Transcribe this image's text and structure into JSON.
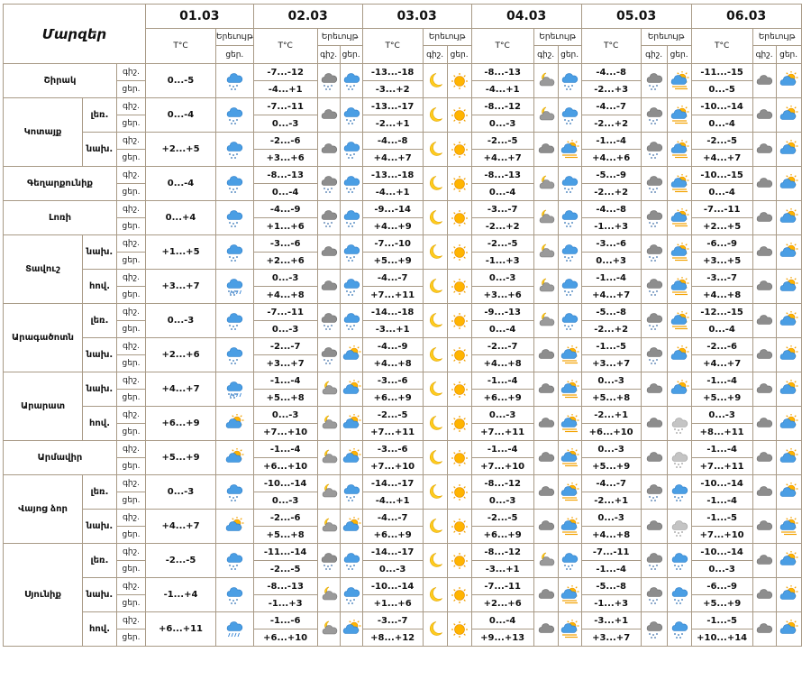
{
  "header": {
    "regions_title": "Մարզեր",
    "temp_label": "T°C",
    "weather_label": "Երեւույթ",
    "night_label": "գիշ.",
    "day_label": "ցեր."
  },
  "dates": [
    "01.03",
    "02.03",
    "03.03",
    "04.03",
    "05.03",
    "06.03"
  ],
  "rows": [
    {
      "region": "Շիրակ",
      "zone": "",
      "tod": "գիշ.",
      "t1": "",
      "w1": "",
      "d": [
        [
          "-7...-12",
          "cloud-snow",
          "snow-cloud"
        ],
        [
          "-13...-18",
          "moon",
          "sun"
        ],
        [
          "-8...-13",
          "moon-cloud",
          "snow-cloud"
        ],
        [
          "-4...-8",
          "cloud-snow",
          "sun-cloud-wind"
        ],
        [
          "-11...-15",
          "cloud",
          "sun-cloud"
        ]
      ]
    },
    {
      "region": "",
      "zone": "",
      "tod": "ցեր.",
      "t1": "0...-5",
      "w1": "snow-cloud",
      "d": [
        [
          "-4...+1"
        ],
        [
          "-3...+2"
        ],
        [
          "-4...+1"
        ],
        [
          "-2...+3"
        ],
        [
          "0...-5"
        ]
      ]
    },
    {
      "region": "Կոտայք",
      "zone": "լեռ.",
      "tod": "գիշ.",
      "t1": "",
      "w1": "",
      "d": [
        [
          "-7...-11",
          "cloud",
          "snow-cloud"
        ],
        [
          "-13...-17",
          "moon",
          "sun"
        ],
        [
          "-8...-12",
          "moon-cloud",
          "snow-cloud"
        ],
        [
          "-4...-7",
          "cloud-snow",
          "sun-cloud-wind"
        ],
        [
          "-10...-14",
          "cloud",
          "sun-cloud"
        ]
      ]
    },
    {
      "region": "",
      "zone": "",
      "tod": "ցեր.",
      "t1": "0...-4",
      "w1": "snow-cloud",
      "d": [
        [
          "0...-3"
        ],
        [
          "-2...+1"
        ],
        [
          "0...-3"
        ],
        [
          "-2...+2"
        ],
        [
          "0...-4"
        ]
      ]
    },
    {
      "region": "",
      "zone": "նախ.",
      "tod": "գիշ.",
      "t1": "",
      "w1": "",
      "d": [
        [
          "-2...-6",
          "cloud",
          "snow-cloud"
        ],
        [
          "-4...-8",
          "moon",
          "sun"
        ],
        [
          "-2...-5",
          "cloud",
          "sun-cloud-wind"
        ],
        [
          "-1...-4",
          "cloud-snow",
          "sun-cloud-wind"
        ],
        [
          "-2...-5",
          "cloud",
          "sun-cloud"
        ]
      ]
    },
    {
      "region": "",
      "zone": "",
      "tod": "ցեր.",
      "t1": "+2...+5",
      "w1": "snow-cloud",
      "d": [
        [
          "+3...+6"
        ],
        [
          "+4...+7"
        ],
        [
          "+4...+7"
        ],
        [
          "+4...+6"
        ],
        [
          "+4...+7"
        ]
      ]
    },
    {
      "region": "Գեղարքունիք",
      "zone": "",
      "tod": "գիշ.",
      "t1": "",
      "w1": "",
      "d": [
        [
          "-8...-13",
          "cloud-snow",
          "snow-cloud"
        ],
        [
          "-13...-18",
          "moon",
          "sun"
        ],
        [
          "-8...-13",
          "moon-cloud",
          "snow-cloud"
        ],
        [
          "-5...-9",
          "cloud-snow",
          "sun-cloud-wind"
        ],
        [
          "-10...-15",
          "cloud",
          "sun-cloud"
        ]
      ]
    },
    {
      "region": "",
      "zone": "",
      "tod": "ցեր.",
      "t1": "0...-4",
      "w1": "snow-cloud",
      "d": [
        [
          "0...-4"
        ],
        [
          "-4...+1"
        ],
        [
          "0...-4"
        ],
        [
          "-2...+2"
        ],
        [
          "0...-4"
        ]
      ]
    },
    {
      "region": "Լոռի",
      "zone": "",
      "tod": "գիշ.",
      "t1": "",
      "w1": "",
      "d": [
        [
          "-4...-9",
          "cloud-snow",
          "snow-cloud"
        ],
        [
          "-9...-14",
          "moon",
          "sun"
        ],
        [
          "-3...-7",
          "moon-cloud",
          "snow-cloud"
        ],
        [
          "-4...-8",
          "cloud-snow",
          "sun-cloud-wind"
        ],
        [
          "-7...-11",
          "cloud",
          "sun-cloud"
        ]
      ]
    },
    {
      "region": "",
      "zone": "",
      "tod": "ցեր.",
      "t1": "0...+4",
      "w1": "snow-cloud",
      "d": [
        [
          "+1...+6"
        ],
        [
          "+4...+9"
        ],
        [
          "-2...+2"
        ],
        [
          "-1...+3"
        ],
        [
          "+2...+5"
        ]
      ]
    },
    {
      "region": "Տավուշ",
      "zone": "նախ.",
      "tod": "գիշ.",
      "t1": "",
      "w1": "",
      "d": [
        [
          "-3...-6",
          "cloud",
          "snow-cloud"
        ],
        [
          "-7...-10",
          "moon",
          "sun"
        ],
        [
          "-2...-5",
          "moon-cloud",
          "snow-cloud"
        ],
        [
          "-3...-6",
          "cloud-snow",
          "sun-cloud-wind"
        ],
        [
          "-6...-9",
          "cloud",
          "sun-cloud"
        ]
      ]
    },
    {
      "region": "",
      "zone": "",
      "tod": "ցեր.",
      "t1": "+1...+5",
      "w1": "snow-cloud",
      "d": [
        [
          "+2...+6"
        ],
        [
          "+5...+9"
        ],
        [
          "-1...+3"
        ],
        [
          "0...+3"
        ],
        [
          "+3...+5"
        ]
      ]
    },
    {
      "region": "",
      "zone": "հով.",
      "tod": "գիշ.",
      "t1": "",
      "w1": "",
      "d": [
        [
          "0...-3",
          "cloud",
          "snow-cloud"
        ],
        [
          "-4...-7",
          "moon",
          "sun"
        ],
        [
          "0...-3",
          "moon-cloud",
          "snow-cloud"
        ],
        [
          "-1...-4",
          "cloud-snow",
          "sun-cloud-wind"
        ],
        [
          "-3...-7",
          "cloud",
          "sun-cloud"
        ]
      ]
    },
    {
      "region": "",
      "zone": "",
      "tod": "ցեր.",
      "t1": "+3...+7",
      "w1": "snow-rain-cloud",
      "d": [
        [
          "+4...+8"
        ],
        [
          "+7...+11"
        ],
        [
          "+3...+6"
        ],
        [
          "+4...+7"
        ],
        [
          "+4...+8"
        ]
      ]
    },
    {
      "region": "Արագածոտն",
      "zone": "լեռ.",
      "tod": "գիշ.",
      "t1": "",
      "w1": "",
      "d": [
        [
          "-7...-11",
          "cloud-snow",
          "snow-cloud"
        ],
        [
          "-14...-18",
          "moon",
          "sun"
        ],
        [
          "-9...-13",
          "moon-cloud",
          "snow-cloud"
        ],
        [
          "-5...-8",
          "cloud-snow",
          "sun-cloud-wind"
        ],
        [
          "-12...-15",
          "cloud",
          "sun-cloud"
        ]
      ]
    },
    {
      "region": "",
      "zone": "",
      "tod": "ցեր.",
      "t1": "0...-3",
      "w1": "snow-cloud",
      "d": [
        [
          "0...-3"
        ],
        [
          "-3...+1"
        ],
        [
          "0...-4"
        ],
        [
          "-2...+2"
        ],
        [
          "0...-4"
        ]
      ]
    },
    {
      "region": "",
      "zone": "նախ.",
      "tod": "գիշ.",
      "t1": "",
      "w1": "",
      "d": [
        [
          "-2...-7",
          "cloud-snow",
          "sun-cloud"
        ],
        [
          "-4...-9",
          "moon",
          "sun"
        ],
        [
          "-2...-7",
          "cloud",
          "sun-cloud-wind"
        ],
        [
          "-1...-5",
          "cloud-snow",
          "sun-cloud"
        ],
        [
          "-2...-6",
          "cloud",
          "sun-cloud"
        ]
      ]
    },
    {
      "region": "",
      "zone": "",
      "tod": "ցեր.",
      "t1": "+2...+6",
      "w1": "snow-cloud",
      "d": [
        [
          "+3...+7"
        ],
        [
          "+4...+8"
        ],
        [
          "+4...+8"
        ],
        [
          "+3...+7"
        ],
        [
          "+4...+7"
        ]
      ]
    },
    {
      "region": "Արարատ",
      "zone": "նախ.",
      "tod": "գիշ.",
      "t1": "",
      "w1": "",
      "d": [
        [
          "-1...-4",
          "moon-cloud",
          "sun-cloud"
        ],
        [
          "-3...-6",
          "moon",
          "sun"
        ],
        [
          "-1...-4",
          "cloud",
          "sun-cloud-wind"
        ],
        [
          "0...-3",
          "cloud",
          "sun-cloud"
        ],
        [
          "-1...-4",
          "cloud",
          "sun-cloud"
        ]
      ]
    },
    {
      "region": "",
      "zone": "",
      "tod": "ցեր.",
      "t1": "+4...+7",
      "w1": "snow-rain-cloud",
      "d": [
        [
          "+5...+8"
        ],
        [
          "+6...+9"
        ],
        [
          "+6...+9"
        ],
        [
          "+5...+8"
        ],
        [
          "+5...+9"
        ]
      ]
    },
    {
      "region": "",
      "zone": "հով.",
      "tod": "գիշ.",
      "t1": "",
      "w1": "",
      "d": [
        [
          "0...-3",
          "moon-cloud",
          "sun-cloud"
        ],
        [
          "-2...-5",
          "moon",
          "sun"
        ],
        [
          "0...-3",
          "cloud",
          "sun-cloud-wind"
        ],
        [
          "-2...+1",
          "cloud",
          "cloud-light"
        ],
        [
          "0...-3",
          "cloud",
          "sun-cloud"
        ]
      ]
    },
    {
      "region": "",
      "zone": "",
      "tod": "ցեր.",
      "t1": "+6...+9",
      "w1": "sun-cloud",
      "d": [
        [
          "+7...+10"
        ],
        [
          "+7...+11"
        ],
        [
          "+7...+11"
        ],
        [
          "+6...+10"
        ],
        [
          "+8...+11"
        ]
      ]
    },
    {
      "region": "Արմավիր",
      "zone": "",
      "tod": "գիշ.",
      "t1": "",
      "w1": "",
      "d": [
        [
          "-1...-4",
          "moon-cloud",
          "sun-cloud"
        ],
        [
          "-3...-6",
          "moon",
          "sun"
        ],
        [
          "-1...-4",
          "cloud",
          "sun-cloud-wind"
        ],
        [
          "0...-3",
          "cloud",
          "cloud-light"
        ],
        [
          "-1...-4",
          "cloud",
          "sun-cloud"
        ]
      ]
    },
    {
      "region": "",
      "zone": "",
      "tod": "ցեր.",
      "t1": "+5...+9",
      "w1": "sun-cloud",
      "d": [
        [
          "+6...+10"
        ],
        [
          "+7...+10"
        ],
        [
          "+7...+10"
        ],
        [
          "+5...+9"
        ],
        [
          "+7...+11"
        ]
      ]
    },
    {
      "region": "Վայոց ձոր",
      "zone": "լեռ.",
      "tod": "գիշ.",
      "t1": "",
      "w1": "",
      "d": [
        [
          "-10...-14",
          "moon-cloud",
          "snow-cloud"
        ],
        [
          "-14...-17",
          "moon",
          "sun"
        ],
        [
          "-8...-12",
          "cloud",
          "sun-cloud-wind"
        ],
        [
          "-4...-7",
          "cloud-snow",
          "snow-cloud"
        ],
        [
          "-10...-14",
          "cloud",
          "sun-cloud"
        ]
      ]
    },
    {
      "region": "",
      "zone": "",
      "tod": "ցեր.",
      "t1": "0...-3",
      "w1": "snow-cloud",
      "d": [
        [
          "0...-3"
        ],
        [
          "-4...+1"
        ],
        [
          "0...-3"
        ],
        [
          "-2...+1"
        ],
        [
          "-1...-4"
        ]
      ]
    },
    {
      "region": "",
      "zone": "նախ.",
      "tod": "գիշ.",
      "t1": "",
      "w1": "",
      "d": [
        [
          "-2...-6",
          "moon-cloud",
          "sun-cloud"
        ],
        [
          "-4...-7",
          "moon",
          "sun"
        ],
        [
          "-2...-5",
          "cloud",
          "sun-cloud-wind"
        ],
        [
          "0...-3",
          "cloud",
          "cloud-light"
        ],
        [
          "-1...-5",
          "cloud",
          "sun-cloud-wind"
        ]
      ]
    },
    {
      "region": "",
      "zone": "",
      "tod": "ցեր.",
      "t1": "+4...+7",
      "w1": "sun-cloud",
      "d": [
        [
          "+5...+8"
        ],
        [
          "+6...+9"
        ],
        [
          "+6...+9"
        ],
        [
          "+4...+8"
        ],
        [
          "+7...+10"
        ]
      ]
    },
    {
      "region": "Սյունիք",
      "zone": "լեռ.",
      "tod": "գիշ.",
      "t1": "",
      "w1": "",
      "d": [
        [
          "-11...-14",
          "cloud-snow",
          "snow-cloud"
        ],
        [
          "-14...-17",
          "moon",
          "sun"
        ],
        [
          "-8...-12",
          "moon-cloud",
          "snow-cloud"
        ],
        [
          "-7...-11",
          "cloud-snow",
          "snow-cloud"
        ],
        [
          "-10...-14",
          "cloud",
          "sun-cloud"
        ]
      ]
    },
    {
      "region": "",
      "zone": "",
      "tod": "ցեր.",
      "t1": "-2...-5",
      "w1": "snow-cloud",
      "d": [
        [
          "-2...-5"
        ],
        [
          "0...-3"
        ],
        [
          "-3...+1"
        ],
        [
          "-1...-4"
        ],
        [
          "0...-3"
        ]
      ]
    },
    {
      "region": "",
      "zone": "նախ.",
      "tod": "գիշ.",
      "t1": "",
      "w1": "",
      "d": [
        [
          "-8...-13",
          "moon-cloud",
          "snow-cloud"
        ],
        [
          "-10...-14",
          "moon",
          "sun"
        ],
        [
          "-7...-11",
          "cloud",
          "sun-cloud-wind"
        ],
        [
          "-5...-8",
          "cloud-snow",
          "snow-cloud"
        ],
        [
          "-6...-9",
          "cloud",
          "sun-cloud"
        ]
      ]
    },
    {
      "region": "",
      "zone": "",
      "tod": "ցեր.",
      "t1": "-1...+4",
      "w1": "snow-cloud",
      "d": [
        [
          "-1...+3"
        ],
        [
          "+1...+6"
        ],
        [
          "+2...+6"
        ],
        [
          "-1...+3"
        ],
        [
          "+5...+9"
        ]
      ]
    },
    {
      "region": "",
      "zone": "հով.",
      "tod": "գիշ.",
      "t1": "",
      "w1": "",
      "d": [
        [
          "-1...-6",
          "moon-cloud",
          "sun-cloud"
        ],
        [
          "-3...-7",
          "moon",
          "sun"
        ],
        [
          "0...-4",
          "cloud",
          "sun-cloud-wind"
        ],
        [
          "-3...+1",
          "cloud-snow",
          "snow-cloud"
        ],
        [
          "-1...-5",
          "cloud",
          "sun-cloud"
        ]
      ]
    },
    {
      "region": "",
      "zone": "",
      "tod": "ցեր.",
      "t1": "+6...+11",
      "w1": "rain-cloud",
      "d": [
        [
          "+6...+10"
        ],
        [
          "+8...+12"
        ],
        [
          "+9...+13"
        ],
        [
          "+3...+7"
        ],
        [
          "+10...+14"
        ]
      ]
    }
  ]
}
